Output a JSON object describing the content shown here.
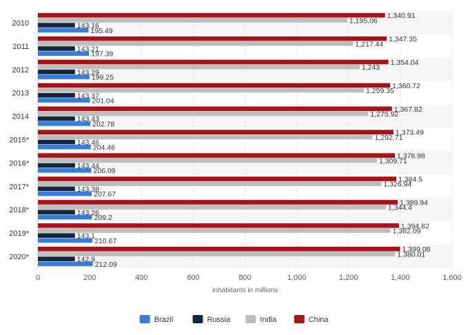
{
  "chart_data": {
    "type": "bar",
    "orientation": "horizontal",
    "title": "",
    "xlabel": "Inhabitants in millions",
    "ylabel": "",
    "xlim": [
      0,
      1600
    ],
    "x_ticks": [
      0,
      200,
      400,
      600,
      800,
      1000,
      1200,
      1400,
      1600
    ],
    "x_tick_labels": [
      "0",
      "200",
      "400",
      "600",
      "800",
      "1,000",
      "1,200",
      "1,400",
      "1,600"
    ],
    "grid": true,
    "legend_position": "bottom",
    "categories": [
      "2010",
      "2011",
      "2012",
      "2013",
      "2014",
      "2015*",
      "2016*",
      "2017*",
      "2018*",
      "2019*",
      "2020*"
    ],
    "series": [
      {
        "name": "China",
        "color": "#a3141b",
        "values": [
          1340.91,
          1347.35,
          1354.04,
          1360.72,
          1367.82,
          1373.49,
          1378.98,
          1384.5,
          1389.94,
          1394.82,
          1399.08
        ],
        "labels": [
          "1,340.91",
          "1,347.35",
          "1,354.04",
          "1,360.72",
          "1,367.82",
          "1,373.49",
          "1,378.98",
          "1,384.5",
          "1,389.94",
          "1,394.82",
          "1,399.08"
        ]
      },
      {
        "name": "India",
        "color": "#bdbdbd",
        "values": [
          1195.06,
          1217.44,
          1243,
          1259.35,
          1275.92,
          1292.71,
          1309.71,
          1326.94,
          1344.4,
          1362.09,
          1380.01
        ],
        "labels": [
          "1,195.06",
          "1,217.44",
          "1,243",
          "1,259.35",
          "1,275.92",
          "1,292.71",
          "1,309.71",
          "1,326.94",
          "1,344.4",
          "1,362.09",
          "1,380.01"
        ]
      },
      {
        "name": "Russia",
        "color": "#14263a",
        "values": [
          143.16,
          143.21,
          143.29,
          143.37,
          143.43,
          143.46,
          143.44,
          143.38,
          143.26,
          143.1,
          142.9
        ],
        "labels": [
          "143.16",
          "143.21",
          "143.29",
          "143.37",
          "143.43",
          "143.46",
          "143.44",
          "143.38",
          "143.26",
          "143.1",
          "142.9"
        ]
      },
      {
        "name": "Brazil",
        "color": "#3a7dd8",
        "values": [
          195.49,
          197.39,
          199.25,
          201.04,
          202.78,
          204.46,
          206.09,
          207.67,
          209.2,
          210.67,
          212.09
        ],
        "labels": [
          "195.49",
          "197.39",
          "199.25",
          "201.04",
          "202.78",
          "204.46",
          "206.09",
          "207.67",
          "209.2",
          "210.67",
          "212.09"
        ]
      }
    ],
    "legend_order": [
      "Brazil",
      "Russia",
      "India",
      "China"
    ]
  }
}
